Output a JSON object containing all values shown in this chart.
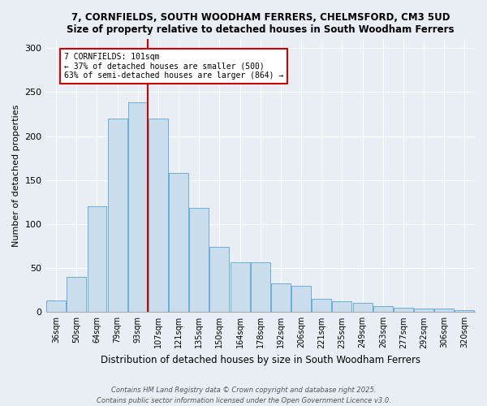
{
  "title": "7, CORNFIELDS, SOUTH WOODHAM FERRERS, CHELMSFORD, CM3 5UD",
  "subtitle": "Size of property relative to detached houses in South Woodham Ferrers",
  "xlabel": "Distribution of detached houses by size in South Woodham Ferrers",
  "ylabel": "Number of detached properties",
  "categories": [
    "36sqm",
    "50sqm",
    "64sqm",
    "79sqm",
    "93sqm",
    "107sqm",
    "121sqm",
    "135sqm",
    "150sqm",
    "164sqm",
    "178sqm",
    "192sqm",
    "206sqm",
    "221sqm",
    "235sqm",
    "249sqm",
    "263sqm",
    "277sqm",
    "292sqm",
    "306sqm",
    "320sqm"
  ],
  "values": [
    13,
    40,
    120,
    220,
    238,
    220,
    158,
    118,
    74,
    57,
    57,
    33,
    30,
    15,
    12,
    10,
    7,
    5,
    4,
    4,
    2
  ],
  "bar_color": "#c9dded",
  "bar_edge_color": "#6aaed6",
  "vline_color": "#cc0000",
  "vline_index": 4.5,
  "annotation_title": "7 CORNFIELDS: 101sqm",
  "annotation_line1": "← 37% of detached houses are smaller (500)",
  "annotation_line2": "63% of semi-detached houses are larger (864) →",
  "annotation_box_color": "#cc0000",
  "ylim": [
    0,
    310
  ],
  "yticks": [
    0,
    50,
    100,
    150,
    200,
    250,
    300
  ],
  "footnote1": "Contains HM Land Registry data © Crown copyright and database right 2025.",
  "footnote2": "Contains public sector information licensed under the Open Government Licence v3.0.",
  "background_color": "#e8eef4",
  "plot_background": "#e8eef4",
  "grid_color": "#ffffff",
  "title_fontsize": 8.5,
  "ylabel_fontsize": 8,
  "xlabel_fontsize": 8.5,
  "tick_fontsize": 7,
  "annot_fontsize": 7,
  "footnote_fontsize": 6
}
